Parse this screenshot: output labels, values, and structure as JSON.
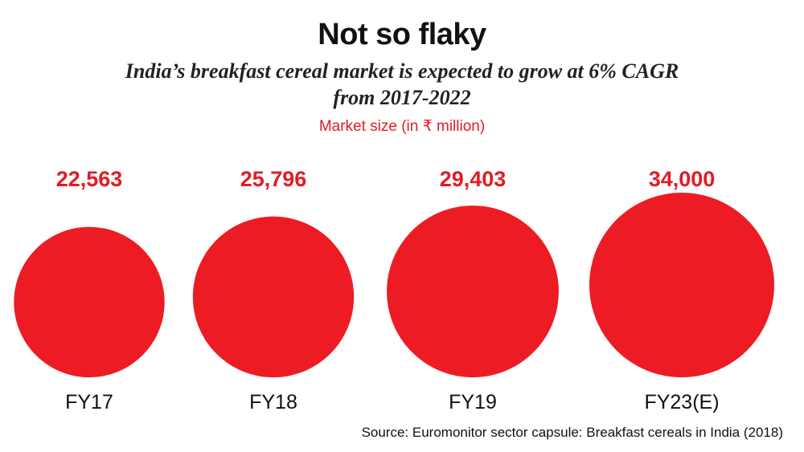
{
  "header": {
    "title": "Not so flaky",
    "subtitle": "India’s breakfast cereal market is expected to grow at 6% CAGR from 2017-2022",
    "unit_label": "Market size (in ₹ million)"
  },
  "footer": {
    "source": "Source: Euromonitor sector capsule: Breakfast cereals in India (2018)"
  },
  "colors": {
    "bubble": "#ed1c24",
    "value_label": "#e31b23",
    "text": "#111111"
  },
  "chart_data": {
    "type": "bubble",
    "title": "Not so flaky",
    "subtitle": "India’s breakfast cereal market is expected to grow at 6% CAGR from 2017-2022",
    "ylabel": "Market size (in ₹ million)",
    "categories": [
      "FY17",
      "FY18",
      "FY19",
      "FY23(E)"
    ],
    "values": [
      22563,
      25796,
      29403,
      34000
    ],
    "value_labels": [
      "22,563",
      "25,796",
      "29,403",
      "34,000"
    ],
    "grid": false,
    "legend": "none"
  }
}
